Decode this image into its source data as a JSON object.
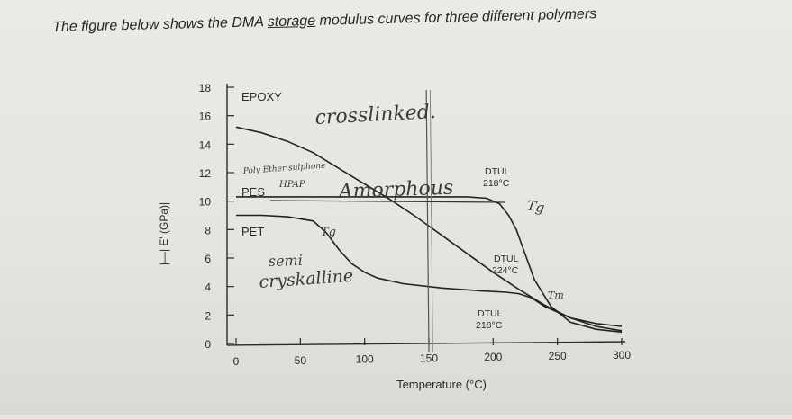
{
  "question": {
    "prefix": "The figure below shows the DMA ",
    "highlighted": "storage",
    "suffix": " modulus curves for three different polymers"
  },
  "chart_data": {
    "type": "line",
    "title": "",
    "xlabel": "Temperature (°C)",
    "ylabel": "|—| E' (GPa)|",
    "xlim": [
      0,
      300
    ],
    "ylim": [
      0,
      18
    ],
    "xticks": [
      0,
      50,
      100,
      150,
      200,
      250,
      300
    ],
    "yticks": [
      0,
      2,
      4,
      6,
      8,
      10,
      12,
      14,
      16,
      18
    ],
    "grid": false,
    "series": [
      {
        "name": "EPOXY",
        "x": [
          0,
          20,
          40,
          60,
          80,
          100,
          120,
          140,
          160,
          180,
          200,
          220,
          240,
          260,
          280,
          300
        ],
        "y": [
          15.2,
          14.8,
          14.2,
          13.4,
          12.3,
          11.2,
          10.1,
          8.9,
          7.6,
          6.3,
          5.0,
          3.8,
          2.7,
          1.8,
          1.2,
          0.9
        ]
      },
      {
        "name": "PES",
        "x": [
          0,
          40,
          80,
          120,
          160,
          180,
          195,
          205,
          212,
          218,
          224,
          232,
          245,
          260,
          280,
          300
        ],
        "y": [
          10.3,
          10.3,
          10.3,
          10.3,
          10.3,
          10.3,
          10.2,
          9.8,
          9.0,
          8.0,
          6.5,
          4.5,
          2.6,
          1.5,
          1.0,
          0.8
        ]
      },
      {
        "name": "PET",
        "x": [
          0,
          20,
          40,
          60,
          70,
          80,
          90,
          100,
          110,
          130,
          160,
          190,
          210,
          220,
          230,
          240,
          260,
          280,
          300
        ],
        "y": [
          9.0,
          9.0,
          8.9,
          8.6,
          7.8,
          6.6,
          5.6,
          5.0,
          4.6,
          4.2,
          3.9,
          3.7,
          3.6,
          3.5,
          3.2,
          2.6,
          1.8,
          1.4,
          1.2
        ]
      }
    ],
    "printed_annotations": [
      {
        "text": "DTUL",
        "sub": "218°C"
      },
      {
        "text": "DTUL",
        "sub": "224°C"
      },
      {
        "text": "DTUL",
        "sub": "218°C"
      }
    ],
    "handwritten_notes": [
      "crosslinked.",
      "Poly Ether sulphone",
      "HPAP",
      "Amorphous",
      "Tg",
      "Tg",
      "semi",
      "cryskalline",
      "Tm"
    ]
  }
}
